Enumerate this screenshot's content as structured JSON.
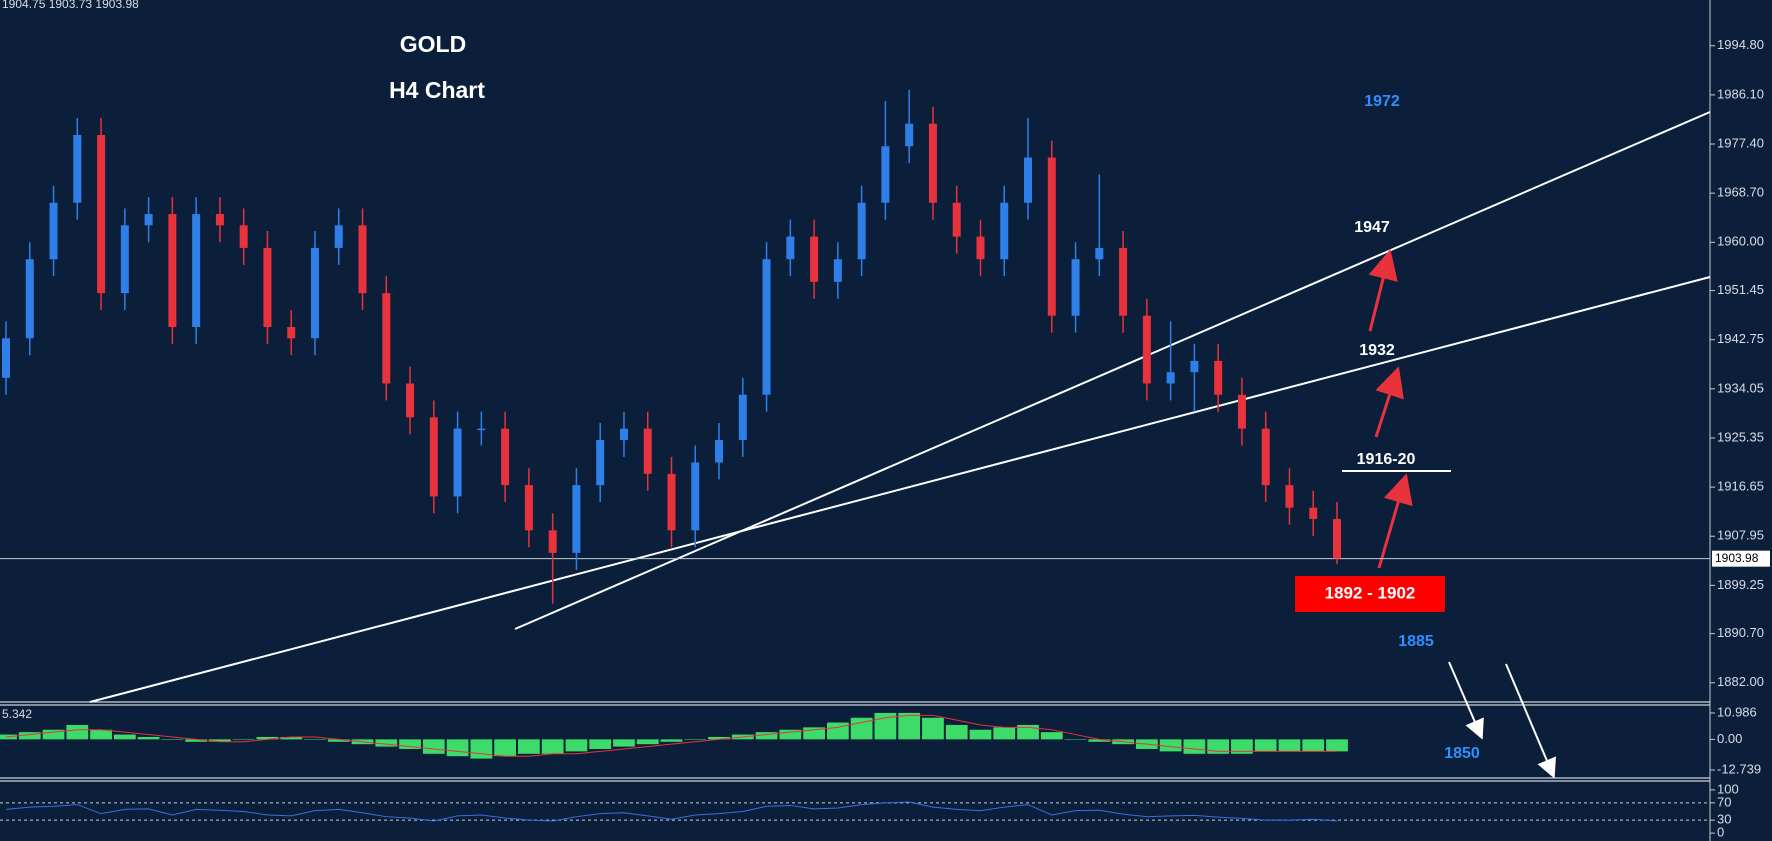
{
  "chart_data": {
    "type": "candlestick",
    "header": "1904.75 1903.73 1903.98",
    "title": "GOLD",
    "subtitle": "H4 Chart",
    "up_color": "#2f7fe8",
    "down_color": "#e8323c",
    "open": [
      1936,
      1943,
      1957,
      1967,
      1979,
      1951,
      1963,
      1965,
      1945,
      1965,
      1963,
      1959,
      1945,
      1943,
      1959,
      1963,
      1951,
      1935,
      1929,
      1915,
      1927,
      1927,
      1917,
      1909,
      1905,
      1917,
      1925,
      1927,
      1919,
      1909,
      1921,
      1925,
      1933,
      1957,
      1961,
      1953,
      1957,
      1967,
      1977,
      1981,
      1967,
      1961,
      1957,
      1967,
      1975,
      1947,
      1957,
      1959,
      1947,
      1935,
      1937,
      1939,
      1933,
      1927,
      1917,
      1913,
      1911
    ],
    "high": [
      1946,
      1960,
      1970,
      1982,
      1982,
      1966,
      1968,
      1968,
      1968,
      1968,
      1966,
      1962,
      1948,
      1962,
      1966,
      1966,
      1954,
      1938,
      1932,
      1930,
      1930,
      1930,
      1920,
      1912,
      1920,
      1928,
      1930,
      1930,
      1922,
      1924,
      1928,
      1936,
      1960,
      1964,
      1964,
      1960,
      1970,
      1985,
      1987,
      1984,
      1970,
      1964,
      1970,
      1982,
      1978,
      1960,
      1972,
      1962,
      1950,
      1946,
      1942,
      1942,
      1936,
      1930,
      1920,
      1916,
      1914
    ],
    "low": [
      1933,
      1940,
      1954,
      1964,
      1948,
      1948,
      1960,
      1942,
      1942,
      1960,
      1956,
      1942,
      1940,
      1940,
      1956,
      1948,
      1932,
      1926,
      1912,
      1912,
      1924,
      1914,
      1906,
      1896,
      1902,
      1914,
      1922,
      1916,
      1906,
      1906,
      1918,
      1922,
      1930,
      1954,
      1950,
      1950,
      1954,
      1964,
      1974,
      1964,
      1958,
      1954,
      1954,
      1964,
      1944,
      1944,
      1954,
      1944,
      1932,
      1932,
      1930,
      1930,
      1924,
      1914,
      1910,
      1908,
      1903
    ],
    "close": [
      1943,
      1957,
      1967,
      1979,
      1951,
      1963,
      1965,
      1945,
      1965,
      1963,
      1959,
      1945,
      1943,
      1959,
      1963,
      1951,
      1935,
      1929,
      1915,
      1927,
      1927,
      1917,
      1909,
      1905,
      1917,
      1925,
      1927,
      1919,
      1909,
      1921,
      1925,
      1933,
      1957,
      1961,
      1953,
      1957,
      1967,
      1977,
      1981,
      1967,
      1961,
      1957,
      1967,
      1975,
      1947,
      1957,
      1959,
      1947,
      1935,
      1937,
      1939,
      1933,
      1927,
      1917,
      1913,
      1911,
      1904
    ],
    "ylim": [
      1878.6,
      2002.9
    ],
    "yticks": [
      {
        "value": 1994.8,
        "label": "1994.80"
      },
      {
        "value": 1986.1,
        "label": "1986.10"
      },
      {
        "value": 1977.4,
        "label": "1977.40"
      },
      {
        "value": 1968.7,
        "label": "1968.70"
      },
      {
        "value": 1960,
        "label": "1960.00"
      },
      {
        "value": 1951.45,
        "label": "1951.45"
      },
      {
        "value": 1942.75,
        "label": "1942.75"
      },
      {
        "value": 1934.05,
        "label": "1934.05"
      },
      {
        "value": 1925.35,
        "label": "1925.35"
      },
      {
        "value": 1916.65,
        "label": "1916.65"
      },
      {
        "value": 1907.95,
        "label": "1907.95"
      },
      {
        "value": 1899.25,
        "label": "1899.25"
      },
      {
        "value": 1890.7,
        "label": "1890.70"
      },
      {
        "value": 1882,
        "label": "1882.00"
      }
    ],
    "current_price": 1903.98,
    "annotations": [
      "1972",
      "1947",
      "1932",
      "1916-20",
      "1892 - 1902",
      "1885",
      "1850"
    ],
    "macd": {
      "label": "5.342",
      "hist_color": "#3ddc6a",
      "signal_color": "#e8323c",
      "values": [
        2,
        3,
        4,
        6,
        4,
        2,
        1,
        0,
        -1,
        -1,
        0,
        1,
        1,
        0,
        -1,
        -2,
        -3,
        -4,
        -6,
        -7,
        -8,
        -7,
        -6,
        -6,
        -5,
        -4,
        -3,
        -2,
        -1,
        0,
        1,
        2,
        3,
        4,
        5,
        7,
        9,
        11,
        11,
        9,
        6,
        4,
        5,
        6,
        3,
        0,
        -1,
        -2,
        -4,
        -5,
        -6,
        -6,
        -6,
        -5,
        -5,
        -5,
        -5
      ],
      "signal": [
        1,
        2,
        3,
        4,
        4,
        3,
        2,
        1,
        0,
        -1,
        -1,
        0,
        1,
        1,
        0,
        -1,
        -2,
        -3,
        -4,
        -5,
        -6,
        -7,
        -7,
        -6,
        -6,
        -5,
        -4,
        -3,
        -2,
        -1,
        0,
        1,
        2,
        3,
        4,
        5,
        7,
        9,
        10,
        10,
        8,
        6,
        5,
        5,
        4,
        2,
        0,
        -1,
        -2,
        -3,
        -4,
        -5,
        -5,
        -5,
        -5,
        -5,
        -5
      ],
      "ylim": [
        -15.66,
        14.3
      ],
      "yticks": [
        10.986,
        {
          "value": 0,
          "label": "0.00"
        },
        -12.739
      ]
    },
    "rsi": {
      "color": "#3a6fe0",
      "values": [
        55,
        60,
        62,
        66,
        45,
        55,
        56,
        42,
        55,
        53,
        50,
        42,
        40,
        52,
        55,
        47,
        38,
        35,
        28,
        40,
        42,
        35,
        30,
        28,
        38,
        45,
        47,
        40,
        32,
        42,
        45,
        50,
        62,
        64,
        56,
        58,
        66,
        70,
        72,
        60,
        55,
        52,
        60,
        66,
        42,
        52,
        53,
        44,
        38,
        40,
        41,
        37,
        34,
        30,
        30,
        32,
        28
      ],
      "ylim": [
        -18.2,
        120.5
      ],
      "yticks": [
        100,
        70,
        30,
        0
      ]
    }
  }
}
